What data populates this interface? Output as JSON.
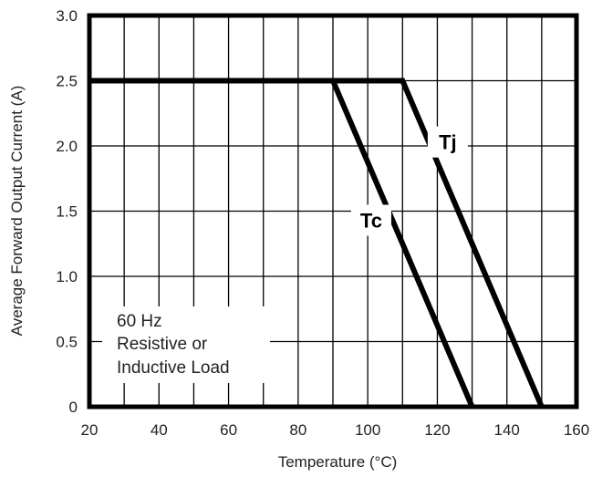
{
  "chart_data": {
    "type": "line",
    "xlabel": "Temperature (°C)",
    "ylabel": "Average Forward Output Current (A)",
    "xlim": [
      20,
      160
    ],
    "ylim": [
      0,
      3.0
    ],
    "x_ticks": [
      "20",
      "40",
      "60",
      "80",
      "100",
      "120",
      "140",
      "160"
    ],
    "y_ticks": [
      "0",
      "0.5",
      "1.0",
      "1.5",
      "2.0",
      "2.5",
      "3.0"
    ],
    "grid": true,
    "grid_x_step": 10,
    "grid_y_step": 0.5,
    "series": [
      {
        "name": "Tc",
        "x": [
          20,
          90,
          130
        ],
        "y": [
          2.5,
          2.5,
          0
        ]
      },
      {
        "name": "Tj",
        "x": [
          20,
          110,
          150
        ],
        "y": [
          2.5,
          2.5,
          0
        ]
      }
    ],
    "series_label_positions": [
      {
        "name": "Tc",
        "x": 101,
        "y": 1.43
      },
      {
        "name": "Tj",
        "x": 123,
        "y": 2.03
      }
    ],
    "annotations": [
      "60 Hz",
      "Resistive or",
      "Inductive Load"
    ],
    "line_color": "#000000",
    "grid_color": "#000000"
  }
}
